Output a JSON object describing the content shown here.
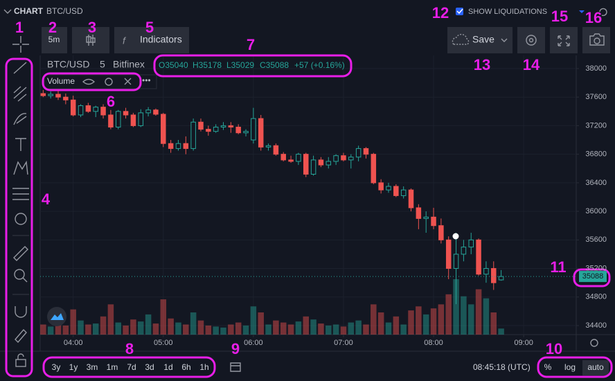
{
  "header": {
    "chart": "CHART",
    "symbol": "BTC/USD",
    "liquidations": "SHOW LIQUIDATIONS"
  },
  "toolbar": {
    "interval": "5m",
    "indicators": "Indicators",
    "save": "Save"
  },
  "legend": {
    "symbol": "BTC/USD",
    "interval": "5",
    "exchange": "Bitfinex",
    "open": "O35040",
    "high": "H35178",
    "low": "L35029",
    "close": "C35088",
    "change": "+57 (+0.16%)"
  },
  "volume_label": "Volume",
  "timeframes": [
    "3y",
    "1y",
    "3m",
    "1m",
    "7d",
    "3d",
    "1d",
    "6h",
    "1h"
  ],
  "clock": "08:45:18 (UTC)",
  "scale_modes": [
    "%",
    "log",
    "auto"
  ],
  "annotations": [
    "1",
    "2",
    "3",
    "4",
    "5",
    "6",
    "7",
    "8",
    "9",
    "10",
    "11",
    "12",
    "13",
    "14",
    "15",
    "16"
  ],
  "chart_data": {
    "type": "candlestick",
    "x": [
      220,
      225,
      230,
      235,
      240,
      245,
      250,
      255,
      260,
      265,
      270,
      275,
      280,
      285,
      290,
      295,
      300,
      305,
      310,
      315,
      320,
      325,
      330,
      335,
      340,
      345,
      350,
      355,
      360,
      365,
      370,
      375,
      380,
      385,
      390,
      395,
      400,
      405,
      410,
      415,
      420,
      425,
      430,
      435,
      440,
      445,
      450,
      455,
      460,
      465,
      470,
      475,
      480,
      485,
      490,
      495,
      500,
      505,
      510,
      515,
      520,
      525
    ],
    "open": [
      37650,
      37620,
      37640,
      37600,
      37560,
      37350,
      37480,
      37400,
      37460,
      37350,
      37180,
      37400,
      37350,
      37200,
      37380,
      37420,
      37360,
      36950,
      36880,
      36950,
      36880,
      37250,
      37150,
      37120,
      37180,
      37200,
      37180,
      37100,
      37000,
      37300,
      36900,
      36920,
      36800,
      36720,
      36700,
      36800,
      36520,
      36720,
      36650,
      36700,
      36780,
      36720,
      36760,
      36880,
      36800,
      36400,
      36300,
      36350,
      36220,
      36300,
      36050,
      35900,
      35920,
      35800,
      35600,
      35200,
      35400,
      35500,
      35600,
      35120,
      35200,
      35040
    ],
    "high": [
      37700,
      37680,
      37690,
      37650,
      37620,
      37500,
      37520,
      37480,
      37500,
      37420,
      37420,
      37450,
      37380,
      37430,
      37460,
      37440,
      37380,
      37000,
      37000,
      37050,
      37300,
      37300,
      37200,
      37220,
      37250,
      37250,
      37220,
      37150,
      37450,
      37350,
      36950,
      36950,
      36830,
      36780,
      36820,
      36820,
      36780,
      36760,
      36760,
      36800,
      36820,
      36800,
      36920,
      36900,
      36820,
      36450,
      36400,
      36380,
      36350,
      36320,
      36100,
      36000,
      36050,
      35900,
      35650,
      35700,
      35600,
      35700,
      35620,
      35300,
      35300,
      35178
    ],
    "low": [
      37600,
      37580,
      37560,
      37500,
      37330,
      37320,
      37380,
      37320,
      37300,
      37150,
      37150,
      37300,
      37180,
      37180,
      37330,
      37340,
      36900,
      36820,
      36850,
      36800,
      36850,
      37120,
      37060,
      37100,
      37140,
      37100,
      37080,
      37050,
      36950,
      36850,
      36850,
      36780,
      36700,
      36680,
      36650,
      36480,
      36500,
      36620,
      36600,
      36650,
      36700,
      36600,
      36700,
      36740,
      36380,
      36250,
      36260,
      36200,
      36180,
      36000,
      35750,
      35700,
      35750,
      35550,
      35050,
      34700,
      35300,
      35400,
      35100,
      35000,
      34900,
      35029
    ],
    "close": [
      37620,
      37640,
      37600,
      37560,
      37350,
      37480,
      37400,
      37460,
      37350,
      37180,
      37400,
      37350,
      37200,
      37380,
      37420,
      37360,
      36950,
      36880,
      36950,
      36880,
      37250,
      37150,
      37120,
      37180,
      37200,
      37180,
      37100,
      37120,
      37300,
      36900,
      36920,
      36800,
      36720,
      36700,
      36800,
      36520,
      36720,
      36650,
      36700,
      36780,
      36720,
      36760,
      36880,
      36800,
      36400,
      36300,
      36350,
      36220,
      36300,
      36050,
      35900,
      35920,
      35800,
      35600,
      35200,
      35400,
      35500,
      35600,
      35120,
      35200,
      35000,
      35088
    ],
    "volume": [
      10,
      8,
      12,
      9,
      25,
      14,
      10,
      11,
      18,
      30,
      12,
      9,
      15,
      13,
      20,
      11,
      35,
      16,
      12,
      10,
      22,
      14,
      9,
      8,
      7,
      10,
      12,
      9,
      28,
      22,
      10,
      14,
      12,
      10,
      13,
      18,
      15,
      11,
      9,
      10,
      8,
      12,
      14,
      10,
      30,
      22,
      12,
      18,
      10,
      24,
      28,
      20,
      26,
      30,
      40,
      55,
      38,
      30,
      45,
      36,
      22,
      6
    ],
    "up_color": "#26a69a",
    "down_color": "#ef5350",
    "xlim": [
      218,
      575
    ],
    "xticks": [
      {
        "value": 240,
        "label": "04:00"
      },
      {
        "value": 300,
        "label": "05:00"
      },
      {
        "value": 360,
        "label": "06:00"
      },
      {
        "value": 420,
        "label": "07:00"
      },
      {
        "value": 480,
        "label": "08:00"
      },
      {
        "value": 540,
        "label": "09:00"
      }
    ],
    "ylim": [
      34274,
      38184
    ],
    "yticks": [
      34400,
      34800,
      35200,
      35600,
      36000,
      36400,
      36800,
      37200,
      37600,
      38000
    ],
    "grid": true
  }
}
